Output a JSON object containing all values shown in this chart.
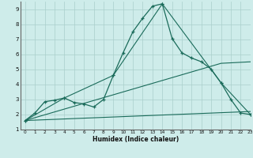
{
  "xlabel": "Humidex (Indice chaleur)",
  "bg_color": "#ceecea",
  "grid_color": "#aacfcb",
  "line_color": "#1a6b5a",
  "xlim": [
    -0.5,
    23
  ],
  "ylim": [
    1,
    9.5
  ],
  "xticks": [
    0,
    1,
    2,
    3,
    4,
    5,
    6,
    7,
    8,
    9,
    10,
    11,
    12,
    13,
    14,
    15,
    16,
    17,
    18,
    19,
    20,
    21,
    22,
    23
  ],
  "yticks": [
    1,
    2,
    3,
    4,
    5,
    6,
    7,
    8,
    9
  ],
  "line1_x": [
    0,
    1,
    2,
    3,
    4,
    5,
    6,
    7,
    8,
    9,
    10,
    11,
    12,
    13,
    14,
    15,
    16,
    17,
    18,
    19,
    20,
    21,
    22,
    23
  ],
  "line1_y": [
    1.6,
    2.1,
    2.85,
    2.95,
    3.1,
    2.8,
    2.7,
    2.5,
    3.0,
    4.6,
    6.1,
    7.5,
    8.4,
    9.2,
    9.35,
    7.05,
    6.1,
    5.75,
    5.5,
    5.0,
    4.1,
    3.0,
    2.1,
    2.0
  ],
  "line2_x": [
    0,
    4,
    9,
    14,
    20,
    23
  ],
  "line2_y": [
    1.6,
    3.1,
    4.6,
    9.35,
    4.1,
    2.0
  ],
  "line3_x": [
    0,
    20,
    23
  ],
  "line3_y": [
    1.6,
    5.4,
    5.5
  ],
  "line4_x": [
    0,
    23
  ],
  "line4_y": [
    1.6,
    2.2
  ]
}
